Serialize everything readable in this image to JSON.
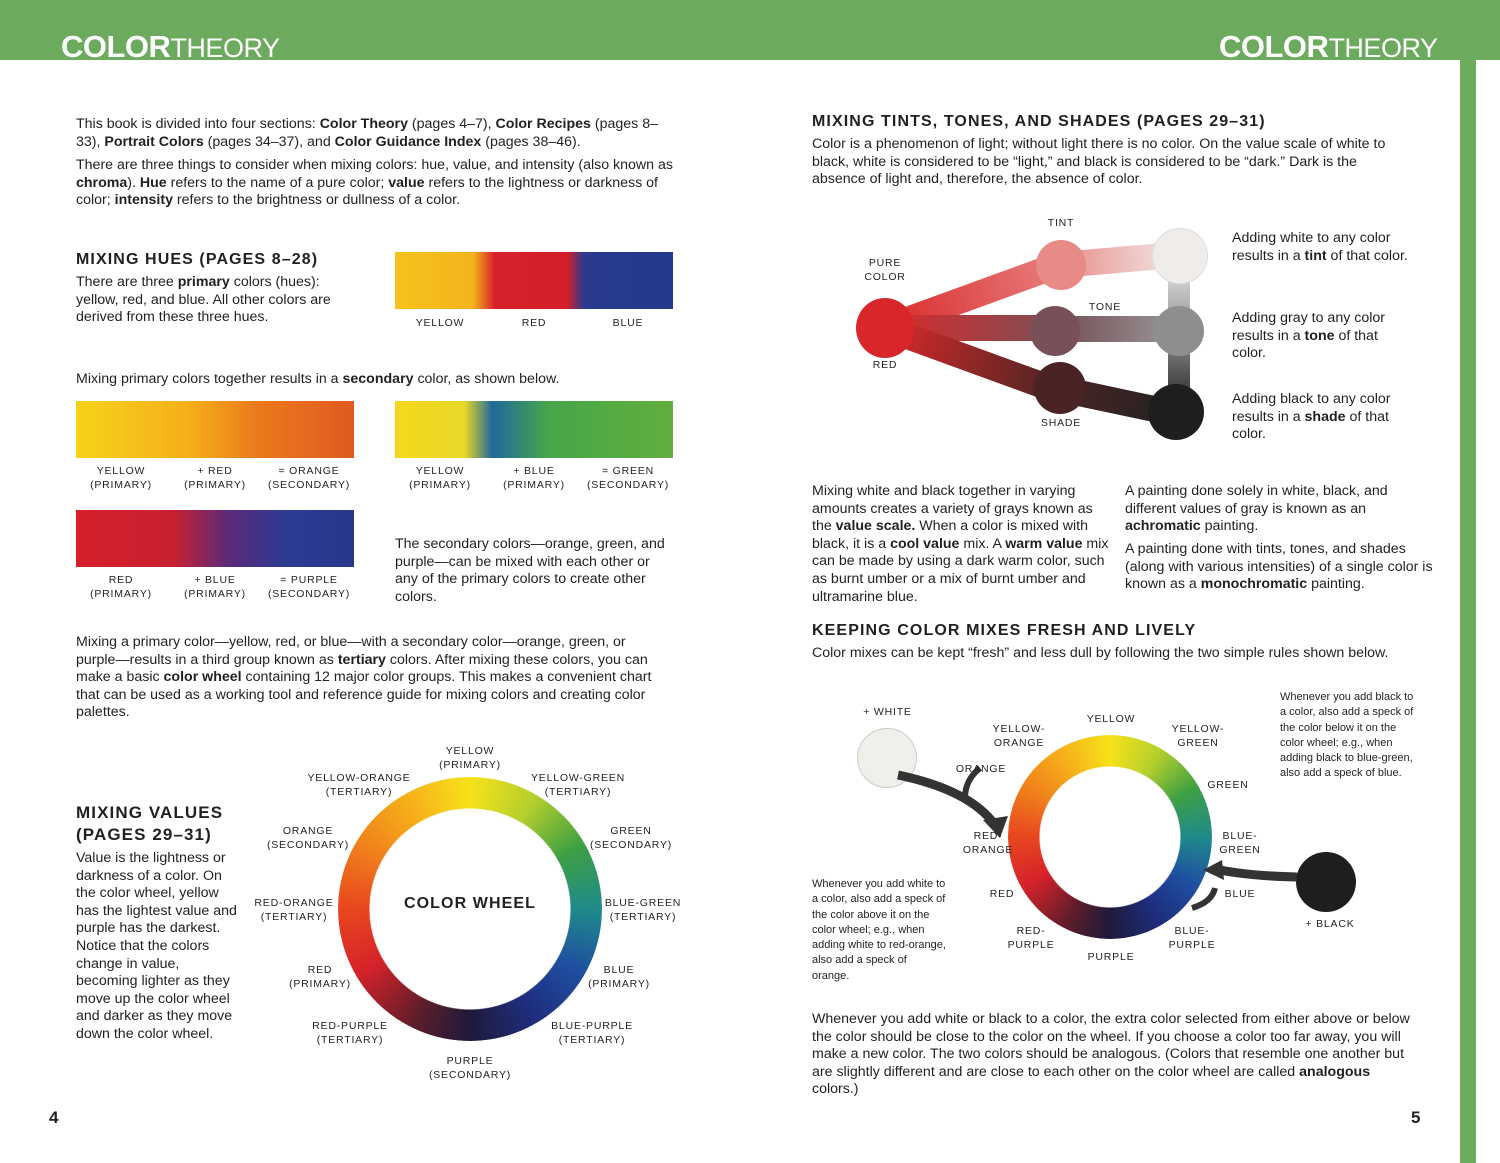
{
  "header": {
    "left_logo_bold": "COLOR",
    "left_logo_light": "THEORY",
    "right_logo_bold": "COLOR",
    "right_logo_light": "THEORY",
    "accent": "#6cab5e"
  },
  "left": {
    "intro": [
      [
        {
          "t": "This book is divided into four sections: "
        },
        {
          "t": "Color Theory",
          "b": 1
        },
        {
          "t": " (pages 4–7), "
        },
        {
          "t": "Color Recipes",
          "b": 1
        },
        {
          "t": " (pages 8–33), "
        },
        {
          "t": "Portrait Colors",
          "b": 1
        },
        {
          "t": " (pages 34–37), and "
        },
        {
          "t": "Color Guidance Index",
          "b": 1
        },
        {
          "t": " (pages 38–46)."
        }
      ],
      [
        {
          "t": "There are three things to consider when mixing colors: hue, value, and intensity (also known as "
        },
        {
          "t": "chroma",
          "b": 1
        },
        {
          "t": "). "
        },
        {
          "t": "Hue",
          "b": 1
        },
        {
          "t": " refers to the name of a pure color; "
        },
        {
          "t": "value",
          "b": 1
        },
        {
          "t": " refers to the lightness or darkness of color; "
        },
        {
          "t": "intensity",
          "b": 1
        },
        {
          "t": " refers to the brightness or dullness of a color."
        }
      ]
    ],
    "hues_heading": "MIXING HUES (PAGES 8–28)",
    "hues_text": [
      {
        "t": "There are three "
      },
      {
        "t": "primary",
        "b": 1
      },
      {
        "t": " colors (hues): yellow, red, and blue. All other colors are derived from these three hues."
      }
    ],
    "primary_labels": [
      "YELLOW",
      "RED",
      "BLUE"
    ],
    "secondary_intro": [
      {
        "t": "Mixing primary colors together results in a "
      },
      {
        "t": "secondary",
        "b": 1
      },
      {
        "t": " color, as shown below."
      }
    ],
    "mix_orange": [
      "YELLOW\n(PRIMARY)",
      "+ RED\n(PRIMARY)",
      "= ORANGE\n(SECONDARY)"
    ],
    "mix_green": [
      "YELLOW\n(PRIMARY)",
      "+ BLUE\n(PRIMARY)",
      "= GREEN\n(SECONDARY)"
    ],
    "mix_purple": [
      "RED\n(PRIMARY)",
      "+ BLUE\n(PRIMARY)",
      "= PURPLE\n(SECONDARY)"
    ],
    "secondary_text": "The secondary colors—orange, green, and purple—can be mixed with each other or any of the primary colors to create other colors.",
    "tertiary_text": [
      {
        "t": "Mixing a primary color—yellow, red, or blue—with a secondary color—orange, green, or purple—results in a third group known as "
      },
      {
        "t": "tertiary",
        "b": 1
      },
      {
        "t": " colors. After mixing these colors, you can make a basic "
      },
      {
        "t": "color wheel",
        "b": 1
      },
      {
        "t": " containing 12 major color groups. This makes a convenient chart that can be used as a working tool and reference guide for mixing colors and creating color palettes."
      }
    ],
    "values_heading": "MIXING VALUES (PAGES 29–31)",
    "values_text": "Value is the lightness or darkness of a color. On the color wheel, yellow has the lightest value and purple has the darkest. Notice that the colors change in value, becoming lighter as they move up the color wheel and darker as they move down the color wheel.",
    "wheel_title": "COLOR WHEEL",
    "wheel_labels": [
      "YELLOW\n(PRIMARY)",
      "YELLOW-GREEN\n(TERTIARY)",
      "GREEN\n(SECONDARY)",
      "BLUE-GREEN\n(TERTIARY)",
      "BLUE\n(PRIMARY)",
      "BLUE-PURPLE\n(TERTIARY)",
      "PURPLE\n(SECONDARY)",
      "RED-PURPLE\n(TERTIARY)",
      "RED\n(PRIMARY)",
      "RED-ORANGE\n(TERTIARY)",
      "ORANGE\n(SECONDARY)",
      "YELLOW-ORANGE\n(TERTIARY)"
    ],
    "page_number": "4"
  },
  "right": {
    "tints_heading": "MIXING TINTS, TONES, AND SHADES (PAGES 29–31)",
    "tints_text": "Color is a phenomenon of light; without light there is no color. On the value scale of white to black, white is considered to be “light,” and black is considered to be “dark.” Dark is the absence of light and, therefore, the absence of color.",
    "diagram_labels": {
      "tint": "TINT",
      "pure": "PURE\nCOLOR",
      "tone": "TONE",
      "red": "RED",
      "shade": "SHADE"
    },
    "tint_note": [
      {
        "t": "Adding white to any color results in a "
      },
      {
        "t": "tint",
        "b": 1
      },
      {
        "t": " of that color."
      }
    ],
    "tone_note": [
      {
        "t": "Adding gray to any color results in a "
      },
      {
        "t": "tone",
        "b": 1
      },
      {
        "t": " of that color."
      }
    ],
    "shade_note": [
      {
        "t": "Adding black to any color results in a "
      },
      {
        "t": "shade",
        "b": 1
      },
      {
        "t": " of that color."
      }
    ],
    "value_scale_text": [
      {
        "t": "Mixing white and black together in varying amounts creates a variety of grays known as the "
      },
      {
        "t": "value scale.",
        "b": 1
      },
      {
        "t": " When a color is mixed with black, it is a "
      },
      {
        "t": "cool value",
        "b": 1
      },
      {
        "t": " mix. A "
      },
      {
        "t": "warm value",
        "b": 1
      },
      {
        "t": " mix can be made by using a dark warm color, such as burnt umber or a mix of burnt umber and ultramarine blue."
      }
    ],
    "achromatic_text": [
      {
        "t": "A painting done solely in white, black, and different values of gray is known as an "
      },
      {
        "t": "achromatic",
        "b": 1
      },
      {
        "t": " painting."
      }
    ],
    "monochromatic_text": [
      {
        "t": "A painting done with tints, tones, and shades (along with various intensities) of a single color is known as a "
      },
      {
        "t": "monochromatic",
        "b": 1
      },
      {
        "t": " painting."
      }
    ],
    "fresh_heading": "KEEPING COLOR MIXES FRESH AND LIVELY",
    "fresh_text": "Color mixes can be kept “fresh” and less dull by following the two simple rules shown below.",
    "plus_white": "+ WHITE",
    "plus_black": "+ BLACK",
    "black_note": "Whenever you add black to a color, also add a speck of the color below it on the color wheel; e.g., when adding black to blue-green, also add a speck of blue.",
    "white_note": "Whenever you add white to a color, also add a speck of the color above it on the color wheel; e.g., when adding white to red-orange, also add a speck of orange.",
    "wheel_labels": [
      "YELLOW",
      "YELLOW-\nGREEN",
      "GREEN",
      "BLUE-\nGREEN",
      "BLUE",
      "BLUE-\nPURPLE",
      "PURPLE",
      "RED-\nPURPLE",
      "RED",
      "RED-\nORANGE",
      "ORANGE",
      "YELLOW-\nORANGE"
    ],
    "analogous_text": [
      {
        "t": "Whenever you add white or black to a color, the extra color selected from either above or below the color should be close to the color on the wheel. If you choose a color too far away, you will make a new color. The two colors should be analogous. (Colors that resemble one another but are slightly different and are close to each other on the color wheel are called "
      },
      {
        "t": "analogous",
        "b": 1
      },
      {
        "t": " colors.)"
      }
    ],
    "page_number": "5"
  }
}
